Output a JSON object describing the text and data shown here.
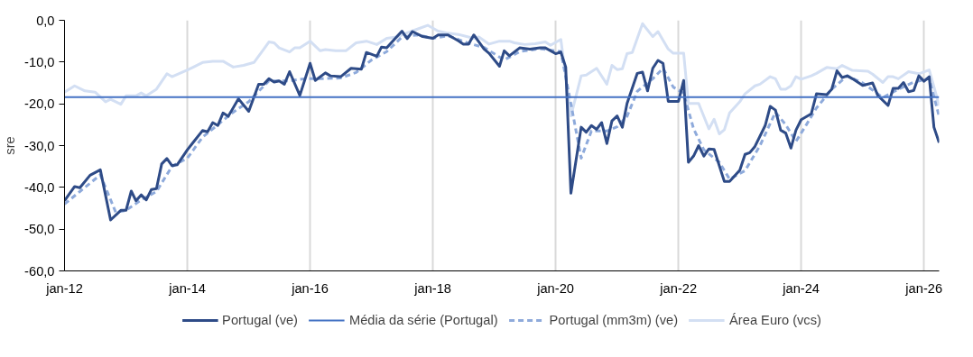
{
  "chart_data": {
    "type": "line",
    "ylabel": "sre",
    "legend": "bottom",
    "grid": "x",
    "line_style": "solid",
    "marker": "none",
    "xlim": [
      "2012-01",
      "2026-04"
    ],
    "xticks": [
      {
        "value": "2012-01",
        "label": "jan-12"
      },
      {
        "value": "2014-01",
        "label": "jan-14"
      },
      {
        "value": "2016-01",
        "label": "jan-16"
      },
      {
        "value": "2018-01",
        "label": "jan-18"
      },
      {
        "value": "2020-01",
        "label": "jan-20"
      },
      {
        "value": "2022-01",
        "label": "jan-22"
      },
      {
        "value": "2024-01",
        "label": "jan-24"
      },
      {
        "value": "2026-01",
        "label": "jan-26"
      }
    ],
    "ylim": [
      -60,
      0
    ],
    "yticks": [
      {
        "value": -60,
        "label": "-60,0"
      },
      {
        "value": -50,
        "label": "-50,0"
      },
      {
        "value": -40,
        "label": "-40,0"
      },
      {
        "value": -30,
        "label": "-30,0"
      },
      {
        "value": -20,
        "label": "-20,0"
      },
      {
        "value": -10,
        "label": "-10,0"
      },
      {
        "value": 0,
        "label": "0,0"
      }
    ],
    "ref_lines": [
      {
        "axis": "y",
        "value": -18.4,
        "label": "Média da série (Portugal)",
        "color": "#4472c4",
        "line_style": "solid"
      }
    ],
    "series": [
      {
        "name": "Área Euro (vcs)",
        "color": "#d3dff3",
        "x": [
          "2012-01",
          "2012-03",
          "2012-05",
          "2012-07",
          "2012-09",
          "2012-10",
          "2012-12",
          "2013-01",
          "2013-03",
          "2013-04",
          "2013-05",
          "2013-07",
          "2013-09",
          "2013-10",
          "2014-01",
          "2014-02",
          "2014-04",
          "2014-06",
          "2014-08",
          "2014-10",
          "2014-12",
          "2015-02",
          "2015-04",
          "2015-05",
          "2015-06",
          "2015-07",
          "2015-09",
          "2015-10",
          "2015-11",
          "2016-01",
          "2016-03",
          "2016-04",
          "2016-06",
          "2016-08",
          "2016-10",
          "2016-12",
          "2017-02",
          "2017-04",
          "2017-06",
          "2017-08",
          "2017-10",
          "2017-12",
          "2018-02",
          "2018-04",
          "2018-06",
          "2018-09",
          "2018-10",
          "2018-12",
          "2019-02",
          "2019-04",
          "2019-05",
          "2019-07",
          "2019-09",
          "2019-11",
          "2019-12",
          "2020-02",
          "2020-04",
          "2020-06",
          "2020-07",
          "2020-09",
          "2020-11",
          "2020-12",
          "2021-01",
          "2021-02",
          "2021-03",
          "2021-04",
          "2021-06",
          "2021-08",
          "2021-09",
          "2021-11",
          "2021-12",
          "2022-02",
          "2022-03",
          "2022-05",
          "2022-07",
          "2022-08",
          "2022-09",
          "2022-10",
          "2022-11",
          "2023-01",
          "2023-02",
          "2023-04",
          "2023-05",
          "2023-07",
          "2023-08",
          "2023-09",
          "2023-10",
          "2023-11",
          "2023-12",
          "2024-01",
          "2024-03",
          "2024-04",
          "2024-06",
          "2024-08",
          "2024-09",
          "2024-11",
          "2025-02",
          "2025-03",
          "2025-05",
          "2025-06",
          "2025-07",
          "2025-08",
          "2025-10",
          "2025-12",
          "2026-02",
          "2026-04"
        ],
        "values": [
          -17.2,
          -15.7,
          -16.9,
          -17.2,
          -19.5,
          -18.9,
          -20.1,
          -18.1,
          -18.1,
          -17.4,
          -18.1,
          -16.5,
          -12.8,
          -13.5,
          -11.9,
          -11.3,
          -10.1,
          -9.8,
          -9.8,
          -11.2,
          -10.8,
          -10.1,
          -6.9,
          -5.2,
          -5.4,
          -6.6,
          -7.6,
          -6.6,
          -6.6,
          -5.0,
          -7.3,
          -7.0,
          -7.3,
          -7.3,
          -5.4,
          -5.0,
          -5.8,
          -4.3,
          -4.0,
          -3.0,
          -2.1,
          -1.2,
          -2.6,
          -3.1,
          -3.4,
          -4.3,
          -4.0,
          -5.7,
          -5.0,
          -5.0,
          -5.4,
          -5.8,
          -5.6,
          -5.2,
          -6.0,
          -4.6,
          -22.9,
          -13.3,
          -13.1,
          -11.5,
          -15.3,
          -10.8,
          -11.8,
          -11.6,
          -8.0,
          -7.7,
          -0.8,
          -3.9,
          -2.7,
          -6.9,
          -7.9,
          -7.9,
          -19.9,
          -19.9,
          -26.0,
          -23.7,
          -27.2,
          -26.2,
          -22.2,
          -19.5,
          -17.6,
          -15.7,
          -15.3,
          -13.5,
          -14.0,
          -16.5,
          -16.5,
          -15.7,
          -13.5,
          -14.1,
          -13.3,
          -12.7,
          -11.3,
          -11.6,
          -10.8,
          -12.0,
          -12.2,
          -12.9,
          -14.9,
          -13.5,
          -13.5,
          -14.0,
          -12.3,
          -12.8,
          -11.9,
          -20.4
        ]
      },
      {
        "name": "Portugal (mm3m) (ve)",
        "color": "#8eaadb",
        "line_style": "dashed",
        "x": [
          "2012-01",
          "2012-04",
          "2012-08",
          "2012-11",
          "2013-01",
          "2013-04",
          "2013-07",
          "2013-10",
          "2014-01",
          "2014-04",
          "2014-07",
          "2014-10",
          "2015-01",
          "2015-03",
          "2015-05",
          "2015-09",
          "2015-12",
          "2016-03",
          "2016-07",
          "2016-10",
          "2017-01",
          "2017-04",
          "2017-07",
          "2017-10",
          "2018-01",
          "2018-04",
          "2018-08",
          "2018-11",
          "2019-03",
          "2019-06",
          "2019-10",
          "2020-02",
          "2020-04",
          "2020-06",
          "2020-08",
          "2020-11",
          "2021-01",
          "2021-03",
          "2021-05",
          "2021-08",
          "2021-10",
          "2021-12",
          "2022-02",
          "2022-04",
          "2022-06",
          "2022-09",
          "2022-11",
          "2023-02",
          "2023-05",
          "2023-08",
          "2023-10",
          "2023-12",
          "2024-02",
          "2024-04",
          "2024-07",
          "2024-10",
          "2025-01",
          "2025-05",
          "2025-08",
          "2025-11",
          "2026-02",
          "2026-04"
        ],
        "values": [
          -44,
          -41,
          -37,
          -46,
          -45.5,
          -43,
          -41,
          -35,
          -33,
          -28,
          -25,
          -22,
          -19.5,
          -17,
          -14.5,
          -14.5,
          -14,
          -14,
          -13.8,
          -12.5,
          -9.5,
          -7.5,
          -4,
          -3.5,
          -4.3,
          -3.7,
          -5.5,
          -6.5,
          -9.5,
          -7.5,
          -6.8,
          -7.5,
          -20,
          -33,
          -26.5,
          -26.5,
          -25.5,
          -23,
          -17,
          -14,
          -11.5,
          -16,
          -17.5,
          -26,
          -31,
          -34,
          -38,
          -36,
          -30,
          -22,
          -25,
          -29,
          -25,
          -21,
          -16.5,
          -13.3,
          -15,
          -18.5,
          -16.5,
          -14.8,
          -14,
          -23
        ]
      },
      {
        "name": "Portugal (ve)",
        "color": "#2e4b87",
        "x": [
          "2012-01",
          "2012-03",
          "2012-04",
          "2012-06",
          "2012-08",
          "2012-10",
          "2012-12",
          "2013-01",
          "2013-02",
          "2013-03",
          "2013-04",
          "2013-05",
          "2013-06",
          "2013-07",
          "2013-08",
          "2013-09",
          "2013-10",
          "2013-11",
          "2014-01",
          "2014-02",
          "2014-04",
          "2014-05",
          "2014-06",
          "2014-07",
          "2014-08",
          "2014-09",
          "2014-11",
          "2015-01",
          "2015-03",
          "2015-04",
          "2015-05",
          "2015-06",
          "2015-07",
          "2015-08",
          "2015-09",
          "2015-11",
          "2016-01",
          "2016-02",
          "2016-04",
          "2016-05",
          "2016-07",
          "2016-09",
          "2016-11",
          "2016-12",
          "2017-02",
          "2017-03",
          "2017-04",
          "2017-06",
          "2017-07",
          "2017-08",
          "2017-09",
          "2017-11",
          "2018-01",
          "2018-02",
          "2018-04",
          "2018-06",
          "2018-07",
          "2018-08",
          "2018-09",
          "2018-11",
          "2018-12",
          "2019-02",
          "2019-03",
          "2019-04",
          "2019-06",
          "2019-08",
          "2019-10",
          "2019-11",
          "2020-01",
          "2020-02",
          "2020-03",
          "2020-04",
          "2020-06",
          "2020-07",
          "2020-08",
          "2020-09",
          "2020-10",
          "2020-11",
          "2020-12",
          "2021-01",
          "2021-02",
          "2021-03",
          "2021-05",
          "2021-06",
          "2021-07",
          "2021-08",
          "2021-09",
          "2021-10",
          "2021-11",
          "2022-01",
          "2022-02",
          "2022-03",
          "2022-04",
          "2022-05",
          "2022-06",
          "2022-07",
          "2022-08",
          "2022-10",
          "2022-11",
          "2023-01",
          "2023-02",
          "2023-03",
          "2023-04",
          "2023-06",
          "2023-07",
          "2023-08",
          "2023-09",
          "2023-10",
          "2023-11",
          "2023-12",
          "2024-01",
          "2024-03",
          "2024-04",
          "2024-06",
          "2024-07",
          "2024-08",
          "2024-09",
          "2024-10",
          "2024-11",
          "2025-01",
          "2025-03",
          "2025-04",
          "2025-06",
          "2025-07",
          "2025-08",
          "2025-09",
          "2025-10",
          "2025-11",
          "2025-12",
          "2026-01",
          "2026-02",
          "2026-03",
          "2026-04"
        ],
        "values": [
          -43.2,
          -39.8,
          -40.1,
          -37.1,
          -35.8,
          -47.8,
          -45.5,
          -45.5,
          -40.9,
          -43.2,
          -41.8,
          -43.0,
          -40.5,
          -40.3,
          -34.4,
          -33.1,
          -34.8,
          -34.6,
          -31.0,
          -29.4,
          -26.4,
          -26.7,
          -24.5,
          -25.2,
          -22.2,
          -23.0,
          -18.8,
          -21.8,
          -15.3,
          -15.3,
          -14.0,
          -14.8,
          -14.5,
          -15.3,
          -12.3,
          -18.0,
          -10.3,
          -14.4,
          -12.6,
          -13.3,
          -13.5,
          -11.5,
          -11.7,
          -7.7,
          -8.6,
          -6.4,
          -6.6,
          -3.9,
          -2.6,
          -4.4,
          -2.7,
          -3.9,
          -4.3,
          -3.5,
          -3.5,
          -4.9,
          -5.7,
          -5.7,
          -3.5,
          -6.9,
          -7.9,
          -11.0,
          -7.3,
          -8.5,
          -6.6,
          -6.9,
          -6.6,
          -6.6,
          -8.0,
          -7.6,
          -11.2,
          -41.4,
          -25.6,
          -26.8,
          -25.2,
          -26.1,
          -24.5,
          -29.5,
          -24.1,
          -22.9,
          -25.6,
          -19.9,
          -12.7,
          -12.4,
          -16.9,
          -11.5,
          -9.6,
          -10.3,
          -19.4,
          -19.4,
          -14.4,
          -34.0,
          -32.5,
          -30.0,
          -32.5,
          -30.8,
          -30.9,
          -38.6,
          -38.6,
          -35.9,
          -32.1,
          -31.7,
          -30.2,
          -25.2,
          -20.6,
          -21.5,
          -26.3,
          -27.0,
          -30.6,
          -26.3,
          -23.8,
          -22.4,
          -17.6,
          -17.8,
          -16.5,
          -12.1,
          -13.7,
          -13.3,
          -14.0,
          -15.6,
          -15.0,
          -18.0,
          -20.4,
          -16.3,
          -16.3,
          -14.9,
          -17.1,
          -16.8,
          -13.3,
          -14.6,
          -13.5,
          -25.6,
          -29.3
        ]
      }
    ]
  }
}
